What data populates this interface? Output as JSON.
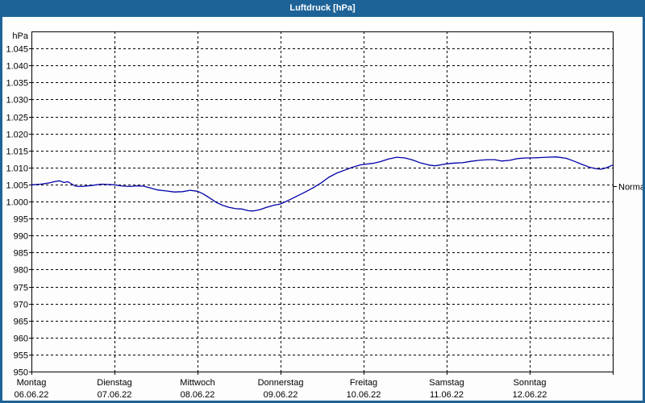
{
  "window": {
    "title": "Luftdruck [hPa]",
    "titlebar_color": "#1d6397",
    "frame_color": "#1d6397"
  },
  "chart_data": {
    "type": "line",
    "title": "Luftdruck [hPa]",
    "unit_label": "hPa",
    "ylabel": "hPa",
    "xlabel": "",
    "ylim": [
      950,
      1050
    ],
    "grid": "dashed, horizontal at every 5 hPa tick and vertical at day boundaries",
    "legend_position": "none",
    "line_color": "#0000a8",
    "y_ticks": [
      {
        "value": 1045,
        "label": "1.045"
      },
      {
        "value": 1040,
        "label": "1.040"
      },
      {
        "value": 1035,
        "label": "1.035"
      },
      {
        "value": 1030,
        "label": "1.030"
      },
      {
        "value": 1025,
        "label": "1.025"
      },
      {
        "value": 1020,
        "label": "1.020"
      },
      {
        "value": 1015,
        "label": "1.015"
      },
      {
        "value": 1010,
        "label": "1.010"
      },
      {
        "value": 1005,
        "label": "1.005"
      },
      {
        "value": 1000,
        "label": "1.000"
      },
      {
        "value": 995,
        "label": "995"
      },
      {
        "value": 990,
        "label": "990"
      },
      {
        "value": 985,
        "label": "985"
      },
      {
        "value": 980,
        "label": "980"
      },
      {
        "value": 975,
        "label": "975"
      },
      {
        "value": 970,
        "label": "970"
      },
      {
        "value": 965,
        "label": "965"
      },
      {
        "value": 960,
        "label": "960"
      },
      {
        "value": 955,
        "label": "955"
      },
      {
        "value": 950,
        "label": "950"
      }
    ],
    "x_days": [
      {
        "name": "Montag",
        "date": "06.06.22"
      },
      {
        "name": "Dienstag",
        "date": "07.06.22"
      },
      {
        "name": "Mittwoch",
        "date": "08.06.22"
      },
      {
        "name": "Donnerstag",
        "date": "09.06.22"
      },
      {
        "name": "Freitag",
        "date": "10.06.22"
      },
      {
        "name": "Samstag",
        "date": "11.06.22"
      },
      {
        "name": "Sonntag",
        "date": "12.06.22"
      }
    ],
    "normal_marker": {
      "label": "Normal",
      "value": 1004.5
    },
    "series": [
      {
        "name": "Luftdruck",
        "unit": "hPa",
        "x_unit": "days from 06.06.22 00:00",
        "points": [
          [
            0.0,
            1004.9
          ],
          [
            0.11,
            1005.1
          ],
          [
            0.2,
            1005.4
          ],
          [
            0.29,
            1005.9
          ],
          [
            0.34,
            1006.1
          ],
          [
            0.39,
            1005.6
          ],
          [
            0.44,
            1005.8
          ],
          [
            0.53,
            1004.5
          ],
          [
            0.6,
            1004.4
          ],
          [
            0.72,
            1004.7
          ],
          [
            0.84,
            1005.1
          ],
          [
            0.93,
            1005.0
          ],
          [
            1.0,
            1004.9
          ],
          [
            1.08,
            1004.6
          ],
          [
            1.18,
            1004.4
          ],
          [
            1.27,
            1004.6
          ],
          [
            1.35,
            1004.5
          ],
          [
            1.43,
            1004.0
          ],
          [
            1.52,
            1003.4
          ],
          [
            1.62,
            1003.1
          ],
          [
            1.72,
            1002.8
          ],
          [
            1.82,
            1002.9
          ],
          [
            1.91,
            1003.3
          ],
          [
            2.0,
            1003.0
          ],
          [
            2.07,
            1002.2
          ],
          [
            2.15,
            1001.0
          ],
          [
            2.22,
            999.8
          ],
          [
            2.3,
            998.9
          ],
          [
            2.38,
            998.3
          ],
          [
            2.46,
            997.9
          ],
          [
            2.53,
            997.8
          ],
          [
            2.61,
            997.3
          ],
          [
            2.67,
            997.2
          ],
          [
            2.75,
            997.6
          ],
          [
            2.83,
            998.3
          ],
          [
            2.92,
            998.9
          ],
          [
            3.0,
            999.3
          ],
          [
            3.1,
            1000.4
          ],
          [
            3.19,
            1001.5
          ],
          [
            3.29,
            1002.7
          ],
          [
            3.39,
            1004.0
          ],
          [
            3.49,
            1005.5
          ],
          [
            3.58,
            1007.1
          ],
          [
            3.68,
            1008.4
          ],
          [
            3.78,
            1009.3
          ],
          [
            3.87,
            1010.1
          ],
          [
            3.97,
            1010.8
          ],
          [
            4.0,
            1010.9
          ],
          [
            4.11,
            1011.2
          ],
          [
            4.2,
            1011.7
          ],
          [
            4.3,
            1012.5
          ],
          [
            4.4,
            1013.0
          ],
          [
            4.5,
            1012.8
          ],
          [
            4.59,
            1012.2
          ],
          [
            4.69,
            1011.3
          ],
          [
            4.79,
            1010.7
          ],
          [
            4.86,
            1010.5
          ],
          [
            4.94,
            1010.8
          ],
          [
            5.0,
            1011.1
          ],
          [
            5.1,
            1011.3
          ],
          [
            5.19,
            1011.4
          ],
          [
            5.29,
            1011.8
          ],
          [
            5.39,
            1012.1
          ],
          [
            5.49,
            1012.3
          ],
          [
            5.58,
            1012.3
          ],
          [
            5.66,
            1011.9
          ],
          [
            5.76,
            1012.1
          ],
          [
            5.85,
            1012.6
          ],
          [
            5.95,
            1012.8
          ],
          [
            6.0,
            1012.8
          ],
          [
            6.11,
            1012.9
          ],
          [
            6.2,
            1013.0
          ],
          [
            6.32,
            1013.1
          ],
          [
            6.44,
            1012.7
          ],
          [
            6.53,
            1011.9
          ],
          [
            6.63,
            1010.9
          ],
          [
            6.73,
            1010.0
          ],
          [
            6.81,
            1009.6
          ],
          [
            6.86,
            1009.5
          ],
          [
            6.92,
            1009.9
          ],
          [
            7.0,
            1010.7
          ]
        ]
      }
    ]
  }
}
